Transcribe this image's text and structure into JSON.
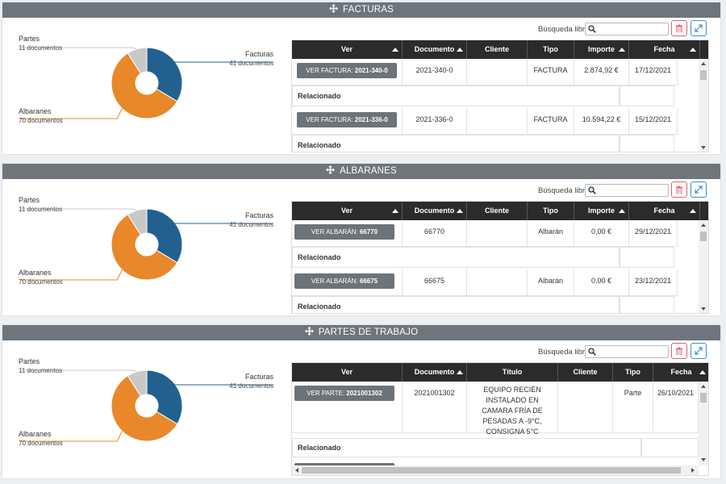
{
  "colors": {
    "header_bg": "#6e757c",
    "grid_head": "#2b2b2b",
    "partes": "#c8c8c8",
    "facturas": "#22618f",
    "albaranes": "#e8882a",
    "delete": "#e06070",
    "expand": "#3d8fd6"
  },
  "search_label": "Búsqueda libre",
  "icons": {
    "move": "move-arrows-icon",
    "search": "magnifier-icon",
    "delete": "trash-icon",
    "expand": "expand-diagonal-icon"
  },
  "facturas": {
    "title": "FACTURAS",
    "chart_data": {
      "type": "pie",
      "donut": true,
      "slices": [
        {
          "label": "Partes",
          "value": 11,
          "sub": "11 documentos",
          "color": "#c8c8c8"
        },
        {
          "label": "Facturas",
          "value": 41,
          "sub": "41 documentos",
          "color": "#22618f"
        },
        {
          "label": "Albaranes",
          "value": 70,
          "sub": "70 documentos",
          "color": "#e8882a"
        }
      ]
    },
    "columns": [
      "Ver",
      "Documento",
      "Cliente",
      "Tipo",
      "Importe",
      "Fecha"
    ],
    "rows": [
      {
        "btn_prefix": "VER FACTURA:",
        "btn_id": "2021-340-0",
        "documento": "2021-340-0",
        "cliente": "",
        "tipo": "FACTURA",
        "importe": "2.874,92 €",
        "fecha": "17/12/2021",
        "related": "Relacionado"
      },
      {
        "btn_prefix": "VER FACTURA:",
        "btn_id": "2021-336-0",
        "documento": "2021-336-0",
        "cliente": "",
        "tipo": "FACTURA",
        "importe": "10.594,22 €",
        "fecha": "15/12/2021",
        "related": "Relacionado"
      }
    ]
  },
  "albaranes": {
    "title": "ALBARANES",
    "chart_data": {
      "type": "pie",
      "donut": true,
      "slices": [
        {
          "label": "Partes",
          "value": 11,
          "sub": "11 documentos",
          "color": "#c8c8c8"
        },
        {
          "label": "Facturas",
          "value": 41,
          "sub": "41 documentos",
          "color": "#22618f"
        },
        {
          "label": "Albaranes",
          "value": 70,
          "sub": "70 documentos",
          "color": "#e8882a"
        }
      ]
    },
    "columns": [
      "Ver",
      "Documento",
      "Cliente",
      "Tipo",
      "Importe",
      "Fecha"
    ],
    "rows": [
      {
        "btn_prefix": "VER ALBARÁN:",
        "btn_id": "66770",
        "documento": "66770",
        "cliente": "",
        "tipo": "Albarán",
        "importe": "0,00 €",
        "fecha": "29/12/2021",
        "related": "Relacionado"
      },
      {
        "btn_prefix": "VER ALBARÁN:",
        "btn_id": "66675",
        "documento": "66675",
        "cliente": "",
        "tipo": "Albarán",
        "importe": "0,00 €",
        "fecha": "23/12/2021",
        "related": "Relacionado"
      }
    ]
  },
  "partes": {
    "title": "PARTES DE TRABAJO",
    "chart_data": {
      "type": "pie",
      "donut": true,
      "slices": [
        {
          "label": "Partes",
          "value": 11,
          "sub": "11 documentos",
          "color": "#c8c8c8"
        },
        {
          "label": "Facturas",
          "value": 41,
          "sub": "41 documentos",
          "color": "#22618f"
        },
        {
          "label": "Albaranes",
          "value": 70,
          "sub": "70 documentos",
          "color": "#e8882a"
        }
      ]
    },
    "columns": [
      "Ver",
      "Documento",
      "Título",
      "Cliente",
      "Tipo",
      "Fecha"
    ],
    "rows": [
      {
        "btn_prefix": "VER PARTE:",
        "btn_id": "2021001302",
        "documento": "2021001302",
        "titulo": "EQUIPO RECIÉN INSTALADO EN CAMARA FRÍA DE PESADAS A -9°C, CONSIGNA 5°C",
        "cliente": "",
        "tipo": "Parte",
        "fecha": "26/10/2021",
        "related": "Relacionado"
      }
    ]
  }
}
